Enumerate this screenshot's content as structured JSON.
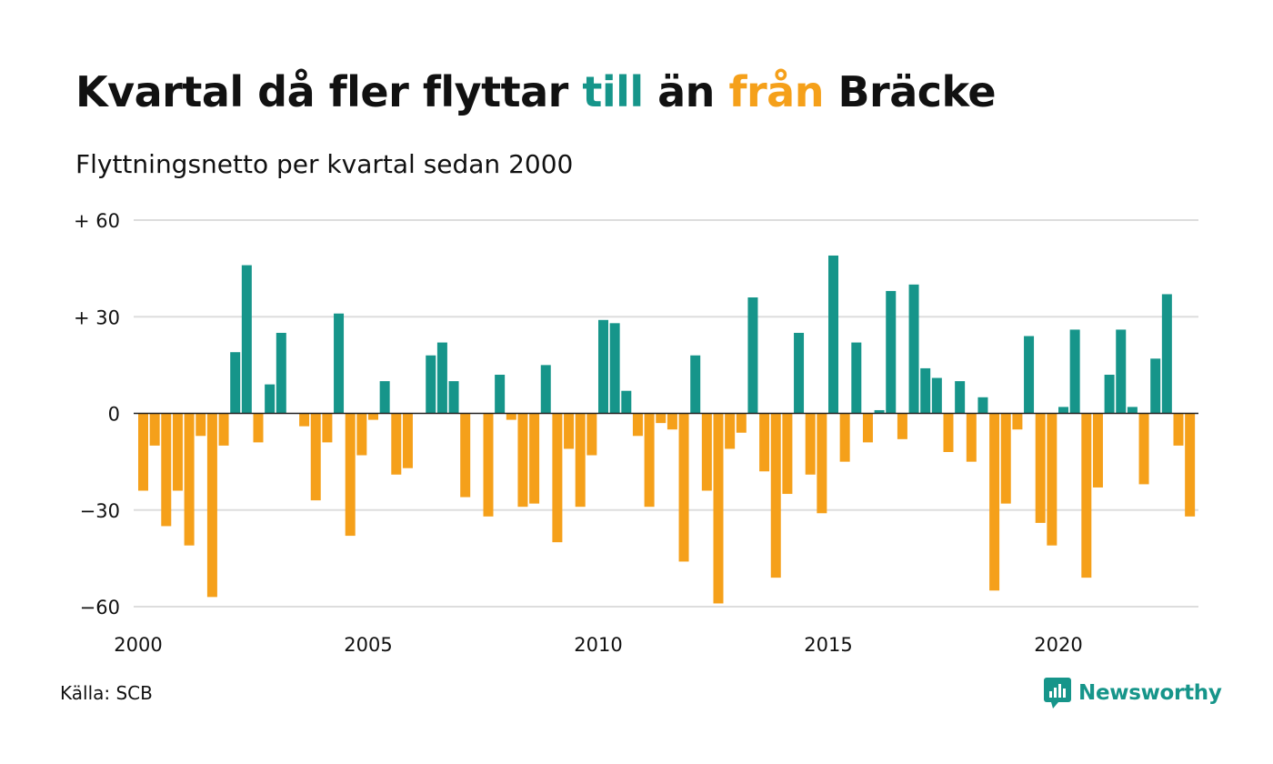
{
  "title": {
    "part1": "Kvartal då fler flyttar ",
    "till": "till",
    "part2": " än ",
    "fran": "från",
    "part3": " Bräcke"
  },
  "subtitle": "Flyttningsnetto per kvartal sedan 2000",
  "source": "Källa: SCB",
  "brand": "Newsworthy",
  "colors": {
    "positive": "#16958a",
    "negative": "#f5a01a",
    "grid": "#dddddd",
    "zero_line": "#222222",
    "text": "#111111"
  },
  "chart_data": {
    "type": "bar",
    "x_start": "2000 Q1",
    "frequency": "quarterly",
    "xticks": [
      "2000",
      "2005",
      "2010",
      "2015",
      "2020"
    ],
    "yticks": [
      60,
      30,
      0,
      -30,
      -60
    ],
    "ytick_labels": [
      "+ 60",
      "+ 30",
      "0",
      "−30",
      "−60"
    ],
    "ylim": [
      -60,
      60
    ],
    "grid": "horizontal",
    "values": [
      -24,
      -10,
      -35,
      -24,
      -41,
      -7,
      -57,
      -10,
      19,
      46,
      -9,
      9,
      25,
      0,
      -4,
      -27,
      -9,
      31,
      -38,
      -13,
      -2,
      10,
      -19,
      -17,
      0,
      18,
      22,
      10,
      -26,
      0,
      -32,
      12,
      -2,
      -29,
      -28,
      15,
      -40,
      -11,
      -29,
      -13,
      29,
      28,
      7,
      -7,
      -29,
      -3,
      -5,
      -46,
      18,
      -24,
      -59,
      -11,
      -6,
      36,
      -18,
      -51,
      -25,
      25,
      -19,
      -31,
      49,
      -15,
      22,
      -9,
      1,
      38,
      -8,
      40,
      14,
      11,
      -12,
      10,
      -15,
      5,
      -55,
      -28,
      -5,
      24,
      -34,
      -41,
      2,
      26,
      -51,
      -23,
      12,
      26,
      2,
      -22,
      17,
      37,
      -10,
      -32
    ]
  }
}
